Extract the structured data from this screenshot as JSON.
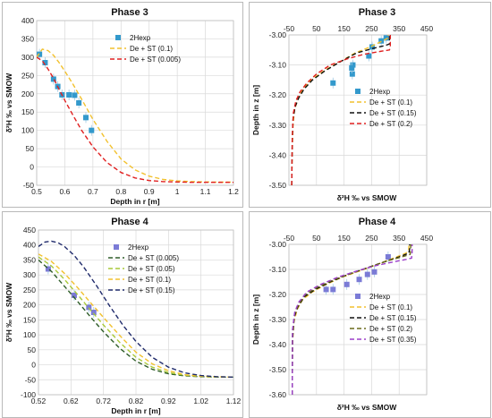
{
  "chart_data": [
    {
      "type": "scatter",
      "title": "Phase 3",
      "xlabel": "Depth in r [m]",
      "ylabel": "δ²H ‰ vs SMOW",
      "xlim": [
        0.5,
        1.2
      ],
      "ylim": [
        -50,
        400
      ],
      "xticks": [
        "0.5",
        "0.6",
        "0.7",
        "0.8",
        "0.9",
        "1",
        "1.1",
        "1.2"
      ],
      "yticks": [
        "-50",
        "0",
        "50",
        "100",
        "150",
        "200",
        "250",
        "300",
        "350",
        "400"
      ],
      "legend_position": "top-right",
      "grid": true,
      "series": [
        {
          "name": "2Hexp",
          "kind": "marker",
          "color": "#3399cc",
          "x": [
            0.51,
            0.53,
            0.56,
            0.575,
            0.59,
            0.615,
            0.635,
            0.65,
            0.675,
            0.695
          ],
          "y": [
            308,
            285,
            240,
            220,
            197,
            197,
            196,
            175,
            135,
            100
          ]
        },
        {
          "name": "De + ST (0.1)",
          "kind": "dashed",
          "color": "#f2c12e",
          "x": [
            0.5,
            0.52,
            0.54,
            0.56,
            0.58,
            0.6,
            0.63,
            0.66,
            0.7,
            0.75,
            0.8,
            0.85,
            0.9,
            0.95,
            1.0,
            1.05,
            1.1,
            1.15,
            1.2
          ],
          "y": [
            300,
            322,
            318,
            305,
            285,
            262,
            225,
            185,
            130,
            70,
            22,
            -8,
            -25,
            -34,
            -38,
            -40,
            -41,
            -41.5,
            -41.5
          ]
        },
        {
          "name": "De + ST (0.005)",
          "kind": "dashed",
          "color": "#e02020",
          "x": [
            0.5,
            0.52,
            0.54,
            0.56,
            0.58,
            0.6,
            0.63,
            0.66,
            0.7,
            0.75,
            0.8,
            0.85,
            0.9,
            0.95,
            1.0,
            1.05,
            1.1,
            1.15,
            1.2
          ],
          "y": [
            300,
            290,
            268,
            242,
            212,
            182,
            140,
            100,
            55,
            12,
            -15,
            -30,
            -37,
            -40,
            -41,
            -42,
            -42,
            -42,
            -42
          ]
        }
      ]
    },
    {
      "type": "scatter",
      "title": "Phase 3",
      "xlabel": "δ²H ‰ vs SMOW",
      "ylabel": "Depth in z [m]",
      "xlim": [
        -50,
        450
      ],
      "ylim": [
        -3.5,
        -3.0
      ],
      "xticks": [
        "-50",
        "50",
        "150",
        "250",
        "350",
        "450"
      ],
      "yticks": [
        "-3.00",
        "-3.10",
        "-3.20",
        "-3.30",
        "-3.40",
        "-3.50"
      ],
      "legend_position": "center",
      "grid": true,
      "series": [
        {
          "name": "2Hexp",
          "kind": "marker",
          "color": "#3399cc",
          "x": [
            303,
            285,
            252,
            240,
            182,
            180,
            178,
            110
          ],
          "y": [
            -3.01,
            -3.02,
            -3.04,
            -3.07,
            -3.1,
            -3.13,
            -3.11,
            -3.16
          ]
        },
        {
          "name": "De + ST (0.1)",
          "kind": "dashed",
          "color": "#f2c12e",
          "x": [
            -40,
            -38,
            -35,
            -30,
            -20,
            -5,
            15,
            45,
            85,
            135,
            190,
            245,
            290,
            310,
            310
          ],
          "y": [
            -3.5,
            -3.38,
            -3.3,
            -3.25,
            -3.22,
            -3.19,
            -3.165,
            -3.14,
            -3.115,
            -3.09,
            -3.06,
            -3.04,
            -3.02,
            -3.01,
            -3.0
          ]
        },
        {
          "name": "De + ST (0.15)",
          "kind": "dashed",
          "color": "#111111",
          "x": [
            -40,
            -38,
            -35,
            -28,
            -15,
            5,
            35,
            80,
            135,
            195,
            255,
            300,
            315,
            315
          ],
          "y": [
            -3.5,
            -3.36,
            -3.28,
            -3.24,
            -3.21,
            -3.18,
            -3.15,
            -3.12,
            -3.09,
            -3.06,
            -3.045,
            -3.035,
            -3.03,
            -3.0
          ]
        },
        {
          "name": "De + ST (0.2)",
          "kind": "dashed",
          "color": "#e02020",
          "x": [
            -40,
            -38,
            -34,
            -25,
            -10,
            15,
            50,
            100,
            160,
            220,
            280,
            315,
            318,
            318
          ],
          "y": [
            -3.5,
            -3.34,
            -3.26,
            -3.22,
            -3.19,
            -3.16,
            -3.13,
            -3.1,
            -3.08,
            -3.065,
            -3.055,
            -3.05,
            -3.04,
            -3.0
          ]
        }
      ]
    },
    {
      "type": "scatter",
      "title": "Phase 4",
      "xlabel": "Depth in r [m]",
      "ylabel": "δ²H ‰ vs SMOW",
      "xlim": [
        0.52,
        1.12
      ],
      "ylim": [
        -100,
        450
      ],
      "xticks": [
        "0.52",
        "0.62",
        "0.72",
        "0.82",
        "0.92",
        "1.02",
        "1.12"
      ],
      "yticks": [
        "-100",
        "-50",
        "0",
        "50",
        "100",
        "150",
        "200",
        "250",
        "300",
        "350",
        "400",
        "450"
      ],
      "legend_position": "top-right",
      "grid": true,
      "series": [
        {
          "name": "2Hexp",
          "kind": "marker",
          "color": "#7b7bd6",
          "x": [
            0.55,
            0.63,
            0.675,
            0.69
          ],
          "y": [
            320,
            232,
            192,
            175
          ]
        },
        {
          "name": "De + ST (0.005)",
          "kind": "dashed",
          "color": "#2e5d28",
          "x": [
            0.52,
            0.56,
            0.6,
            0.64,
            0.68,
            0.72,
            0.77,
            0.82,
            0.87,
            0.92,
            0.97,
            1.02,
            1.07,
            1.12
          ],
          "y": [
            350,
            312,
            262,
            212,
            160,
            110,
            55,
            12,
            -15,
            -30,
            -37,
            -40,
            -41,
            -41
          ]
        },
        {
          "name": "De + ST (0.05)",
          "kind": "dashed",
          "color": "#a8c93a",
          "x": [
            0.52,
            0.56,
            0.6,
            0.64,
            0.68,
            0.72,
            0.77,
            0.82,
            0.87,
            0.92,
            0.97,
            1.02,
            1.07,
            1.12
          ],
          "y": [
            360,
            330,
            285,
            235,
            183,
            133,
            75,
            25,
            -8,
            -26,
            -35,
            -39,
            -41,
            -41
          ]
        },
        {
          "name": "De + ST (0.1)",
          "kind": "dashed",
          "color": "#f2c12e",
          "x": [
            0.52,
            0.56,
            0.6,
            0.64,
            0.68,
            0.72,
            0.77,
            0.82,
            0.87,
            0.92,
            0.97,
            1.02,
            1.07,
            1.12
          ],
          "y": [
            370,
            345,
            305,
            258,
            208,
            158,
            98,
            42,
            3,
            -20,
            -33,
            -38,
            -40,
            -41
          ]
        },
        {
          "name": "De + ST (0.15)",
          "kind": "dashed",
          "color": "#1f2a6b",
          "x": [
            0.52,
            0.54,
            0.56,
            0.58,
            0.6,
            0.63,
            0.66,
            0.7,
            0.74,
            0.78,
            0.82,
            0.87,
            0.92,
            0.97,
            1.02,
            1.07,
            1.12
          ],
          "y": [
            395,
            410,
            413,
            408,
            395,
            365,
            325,
            262,
            195,
            132,
            78,
            25,
            -8,
            -27,
            -36,
            -40,
            -41
          ]
        }
      ]
    },
    {
      "type": "scatter",
      "title": "Phase 4",
      "xlabel": "δ²H ‰ vs SMOW",
      "ylabel": "Depth in z [m]",
      "xlim": [
        -50,
        450
      ],
      "ylim": [
        -3.6,
        -3.0
      ],
      "xticks": [
        "-50",
        "50",
        "150",
        "250",
        "350",
        "450"
      ],
      "yticks": [
        "-3.00",
        "-3.10",
        "-3.20",
        "-3.30",
        "-3.40",
        "-3.50",
        "-3.60"
      ],
      "legend_position": "center",
      "grid": true,
      "series": [
        {
          "name": "2Hexp",
          "kind": "marker",
          "color": "#7b7bd6",
          "x": [
            310,
            260,
            235,
            205,
            160,
            110,
            85
          ],
          "y": [
            -3.05,
            -3.11,
            -3.12,
            -3.14,
            -3.16,
            -3.18,
            -3.18
          ]
        },
        {
          "name": "De + ST (0.1)",
          "kind": "dashed",
          "color": "#f2c12e",
          "x": [
            -38,
            -37,
            -32,
            -20,
            0,
            35,
            85,
            145,
            210,
            270,
            330,
            375,
            385,
            385
          ],
          "y": [
            -3.6,
            -3.4,
            -3.31,
            -3.26,
            -3.22,
            -3.19,
            -3.16,
            -3.13,
            -3.105,
            -3.08,
            -3.055,
            -3.035,
            -3.02,
            -3.0
          ]
        },
        {
          "name": "De + ST (0.15)",
          "kind": "dashed",
          "color": "#111111",
          "x": [
            -38,
            -37,
            -31,
            -18,
            5,
            45,
            100,
            165,
            230,
            295,
            350,
            385,
            388,
            388
          ],
          "y": [
            -3.6,
            -3.38,
            -3.29,
            -3.25,
            -3.21,
            -3.18,
            -3.15,
            -3.12,
            -3.095,
            -3.07,
            -3.05,
            -3.035,
            -3.02,
            -3.0
          ]
        },
        {
          "name": "De + ST (0.2)",
          "kind": "dashed",
          "color": "#6a6a1a",
          "x": [
            -38,
            -37,
            -30,
            -16,
            10,
            55,
            115,
            180,
            245,
            310,
            360,
            390,
            392,
            392
          ],
          "y": [
            -3.6,
            -3.36,
            -3.28,
            -3.24,
            -3.2,
            -3.17,
            -3.14,
            -3.115,
            -3.09,
            -3.065,
            -3.05,
            -3.04,
            -3.02,
            -3.0
          ]
        },
        {
          "name": "De + ST (0.35)",
          "kind": "dashed",
          "color": "#9b3fc9",
          "x": [
            -38,
            -37,
            -29,
            -14,
            15,
            65,
            130,
            200,
            265,
            330,
            375,
            395,
            397,
            397
          ],
          "y": [
            -3.6,
            -3.34,
            -3.27,
            -3.23,
            -3.19,
            -3.16,
            -3.13,
            -3.105,
            -3.085,
            -3.07,
            -3.06,
            -3.055,
            -3.03,
            -3.0
          ]
        }
      ]
    }
  ]
}
